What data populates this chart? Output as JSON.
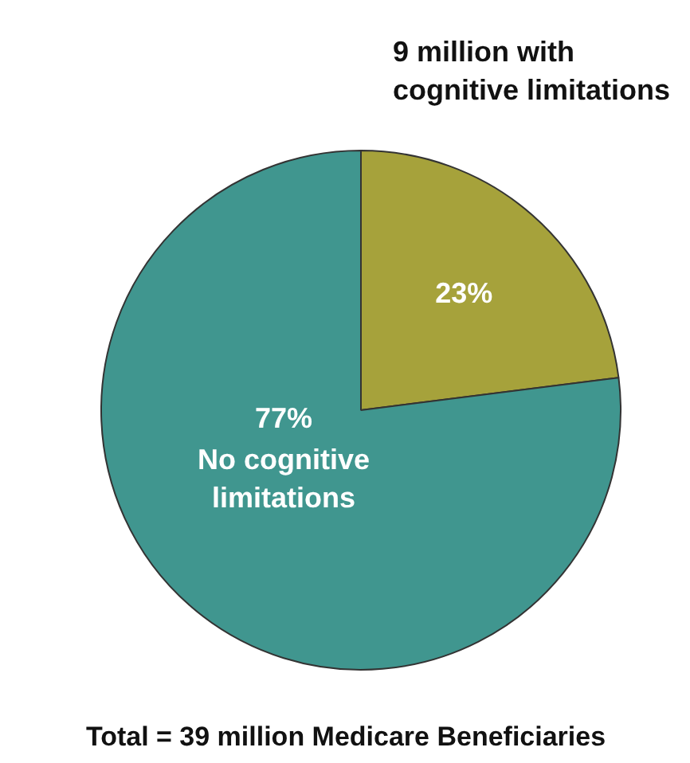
{
  "chart_data": {
    "type": "pie",
    "categories": [
      "9 million with\ncognitive limitations",
      "No cognitive\nlimitations"
    ],
    "values": [
      23,
      77
    ],
    "colors": [
      "#a6a23b",
      "#40968f"
    ],
    "value_labels": [
      "23%",
      "77%"
    ],
    "annotations": [
      "Total = 39 million Medicare Beneficiaries"
    ]
  }
}
